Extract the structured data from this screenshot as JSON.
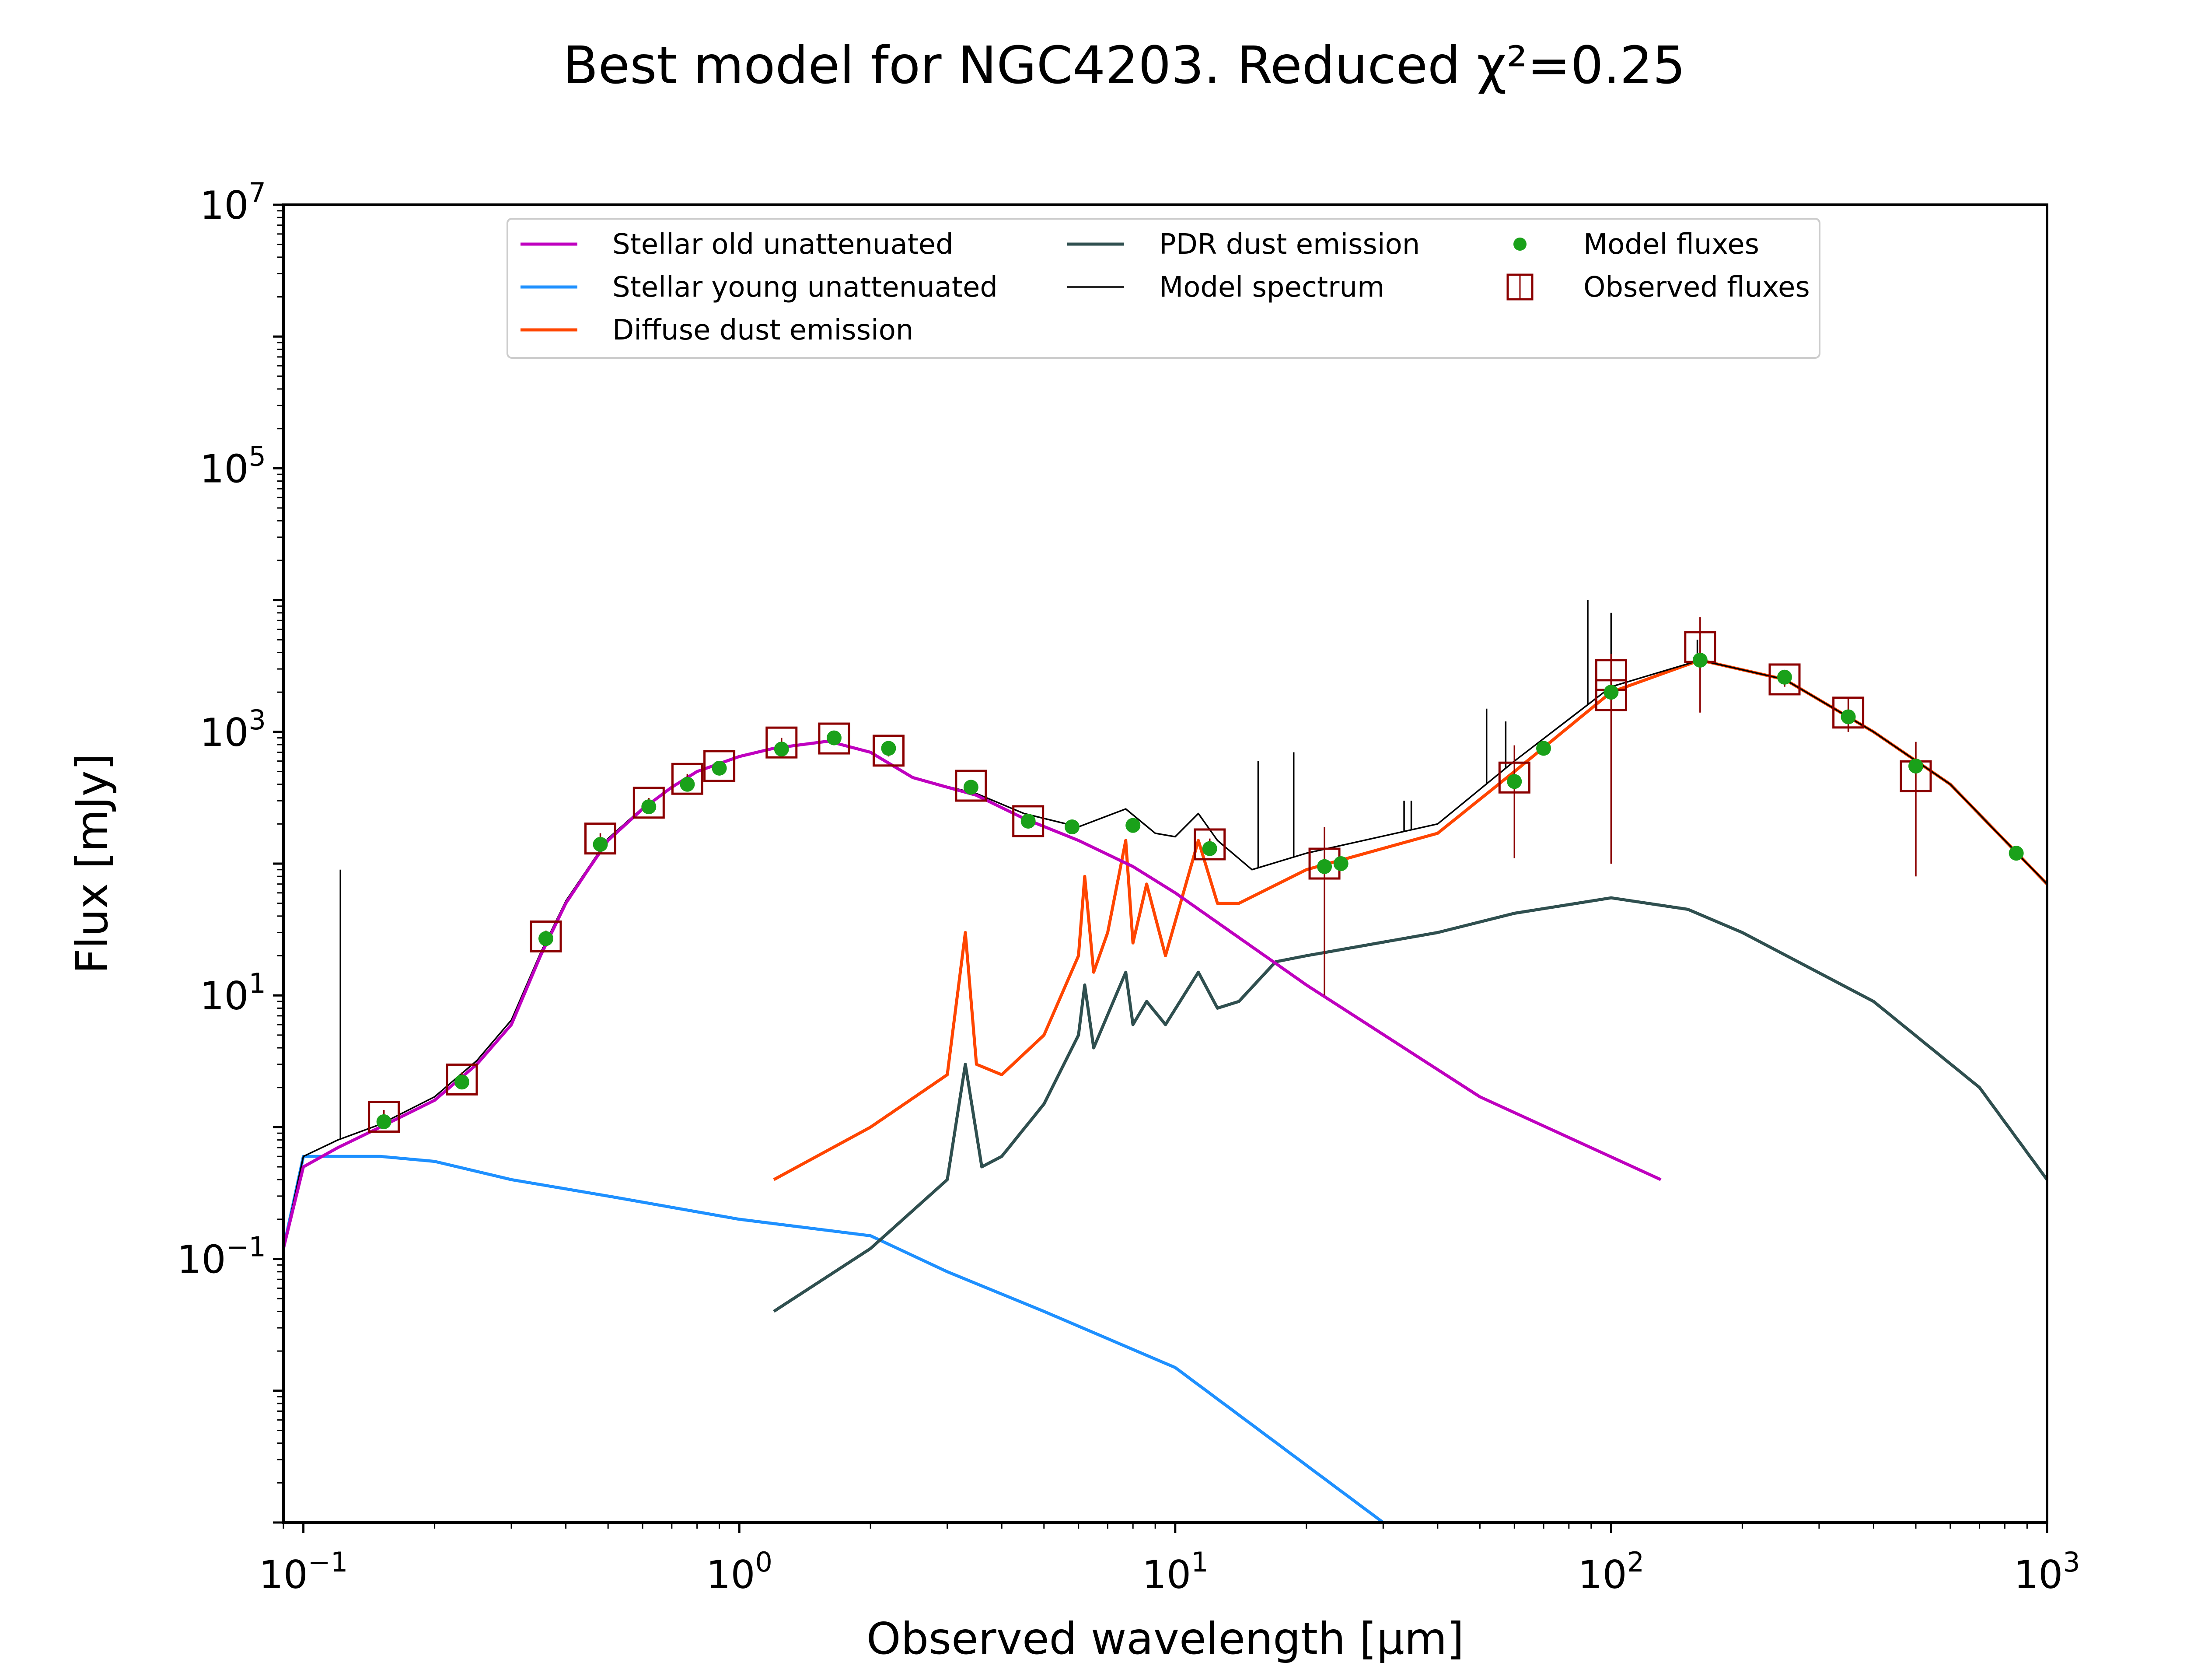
{
  "chart_data": {
    "type": "line",
    "title": "Best model for NGC4203. Reduced χ²=0.25",
    "xlabel": "Observed wavelength [μm]",
    "ylabel": "Flux [mJy]",
    "xscale": "log",
    "yscale": "log",
    "xlim": [
      0.09,
      1000
    ],
    "ylim": [
      0.001,
      10000000
    ],
    "xticks": [
      {
        "value": 0.1,
        "base": "10",
        "exp": "−1"
      },
      {
        "value": 1,
        "base": "10",
        "exp": "0"
      },
      {
        "value": 10,
        "base": "10",
        "exp": "1"
      },
      {
        "value": 100,
        "base": "10",
        "exp": "2"
      },
      {
        "value": 1000,
        "base": "10",
        "exp": "3"
      }
    ],
    "yticks": [
      {
        "value": 0.1,
        "base": "10",
        "exp": "−1"
      },
      {
        "value": 10,
        "base": "10",
        "exp": "1"
      },
      {
        "value": 1000,
        "base": "10",
        "exp": "3"
      },
      {
        "value": 100000,
        "base": "10",
        "exp": "5"
      },
      {
        "value": 10000000,
        "base": "10",
        "exp": "7"
      }
    ],
    "grid": false,
    "legend_position": "top",
    "legend": [
      {
        "key": "old",
        "label": "Stellar old unattenuated",
        "kind": "line"
      },
      {
        "key": "young",
        "label": "Stellar young unattenuated",
        "kind": "line"
      },
      {
        "key": "diffuse",
        "label": "Diffuse dust emission",
        "kind": "line"
      },
      {
        "key": "pdr",
        "label": "PDR dust emission",
        "kind": "line"
      },
      {
        "key": "model",
        "label": "Model spectrum",
        "kind": "thinline"
      },
      {
        "key": "modelflux",
        "label": "Model fluxes",
        "kind": "dot"
      },
      {
        "key": "obs",
        "label": "Observed fluxes",
        "kind": "square"
      }
    ],
    "colors": {
      "old": "#bf00bf",
      "young": "#1e90ff",
      "diffuse": "#ff4500",
      "pdr": "#2f4f4f",
      "model": "#000000",
      "modelflux": "#1aa11a",
      "obs": "#8b0000"
    },
    "series": [
      {
        "key": "old",
        "x": [
          0.09,
          0.1,
          0.12,
          0.15,
          0.2,
          0.25,
          0.3,
          0.35,
          0.4,
          0.45,
          0.5,
          0.6,
          0.7,
          0.8,
          1.0,
          1.2,
          1.6,
          2.0,
          2.5,
          3.0,
          3.5,
          4.5,
          6,
          8,
          10,
          20,
          50,
          130
        ],
        "y": [
          0.12,
          0.5,
          0.7,
          1.0,
          1.6,
          3.0,
          6,
          20,
          50,
          90,
          150,
          260,
          380,
          500,
          650,
          750,
          850,
          700,
          450,
          380,
          330,
          220,
          150,
          95,
          60,
          12,
          1.7,
          0.4
        ]
      },
      {
        "key": "young",
        "x": [
          0.09,
          0.1,
          0.15,
          0.2,
          0.3,
          0.5,
          1.0,
          2.0,
          3.0,
          5.0,
          10,
          30
        ],
        "y": [
          0.12,
          0.6,
          0.6,
          0.55,
          0.4,
          0.3,
          0.2,
          0.15,
          0.08,
          0.04,
          0.015,
          0.001
        ]
      },
      {
        "key": "diffuse",
        "x": [
          1.2,
          2.0,
          3.0,
          3.3,
          3.5,
          4.0,
          5.0,
          6.0,
          6.2,
          6.5,
          7.0,
          7.7,
          8.0,
          8.6,
          9.5,
          11.3,
          12.5,
          14,
          20,
          40,
          60,
          100,
          160,
          250,
          400,
          600,
          1000
        ],
        "y": [
          0.4,
          1.0,
          2.5,
          30,
          3.0,
          2.5,
          5.0,
          20,
          80,
          15,
          30,
          150,
          25,
          70,
          20,
          150,
          50,
          50,
          90,
          170,
          500,
          2000,
          3500,
          2500,
          1000,
          400,
          70
        ]
      },
      {
        "key": "pdr",
        "x": [
          1.2,
          2.0,
          3.0,
          3.3,
          3.6,
          4.0,
          5.0,
          6.0,
          6.2,
          6.5,
          7.7,
          8.0,
          8.6,
          9.5,
          11.3,
          12.5,
          14,
          17,
          20,
          40,
          60,
          100,
          150,
          200,
          400,
          700,
          1000
        ],
        "y": [
          0.04,
          0.12,
          0.4,
          3.0,
          0.5,
          0.6,
          1.5,
          5.0,
          12,
          4,
          15,
          6,
          9,
          6,
          15,
          8,
          9,
          18,
          20,
          30,
          42,
          55,
          45,
          30,
          9,
          2,
          0.4
        ]
      },
      {
        "key": "model",
        "x": [
          0.09,
          0.1,
          0.12,
          0.15,
          0.2,
          0.25,
          0.3,
          0.35,
          0.4,
          0.5,
          0.6,
          0.8,
          1.0,
          1.2,
          1.6,
          2.0,
          2.5,
          3.0,
          3.5,
          4.5,
          6,
          7.7,
          9,
          10,
          11.3,
          12.5,
          15,
          20,
          40,
          60,
          100,
          160,
          250,
          400,
          600,
          1000
        ],
        "y": [
          0.12,
          0.6,
          0.8,
          1.05,
          1.7,
          3.2,
          6.5,
          21,
          52,
          155,
          265,
          505,
          655,
          755,
          855,
          705,
          455,
          385,
          340,
          240,
          190,
          260,
          170,
          160,
          240,
          150,
          90,
          120,
          200,
          600,
          2200,
          3500,
          2500,
          1000,
          400,
          70
        ]
      },
      {
        "key": "lines",
        "x": [
          0.1216,
          15.5,
          18.7,
          33.5,
          34.8,
          51.8,
          57.3,
          88.4,
          100,
          157.7
        ],
        "y": [
          90,
          600,
          700,
          300,
          300,
          1500,
          1200,
          10000,
          8000,
          5000
        ]
      }
    ],
    "model_fluxes": {
      "x": [
        0.153,
        0.231,
        0.36,
        0.48,
        0.62,
        0.76,
        0.9,
        1.25,
        1.65,
        2.2,
        3.4,
        4.6,
        5.8,
        8.0,
        12,
        22,
        24,
        60,
        70,
        100,
        160,
        250,
        350,
        500,
        850
      ],
      "y": [
        1.1,
        2.2,
        27,
        140,
        270,
        400,
        530,
        740,
        900,
        750,
        380,
        210,
        190,
        195,
        130,
        95,
        100,
        420,
        750,
        2000,
        3500,
        2600,
        1300,
        550,
        120
      ]
    },
    "observed_fluxes": {
      "x": [
        0.153,
        0.231,
        0.36,
        0.48,
        0.62,
        0.76,
        0.9,
        1.25,
        1.65,
        2.2,
        3.4,
        4.6,
        12,
        22,
        60,
        100,
        100,
        160,
        250,
        350,
        500
      ],
      "y": [
        1.2,
        2.3,
        28,
        155,
        290,
        440,
        550,
        830,
        890,
        720,
        390,
        210,
        140,
        100,
        450,
        1900,
        2700,
        4400,
        2500,
        1400,
        460
      ],
      "err": [
        0.15,
        0.3,
        3,
        15,
        25,
        40,
        50,
        70,
        80,
        70,
        35,
        20,
        15,
        90,
        340,
        1800,
        1200,
        3000,
        300,
        400,
        380
      ]
    }
  }
}
